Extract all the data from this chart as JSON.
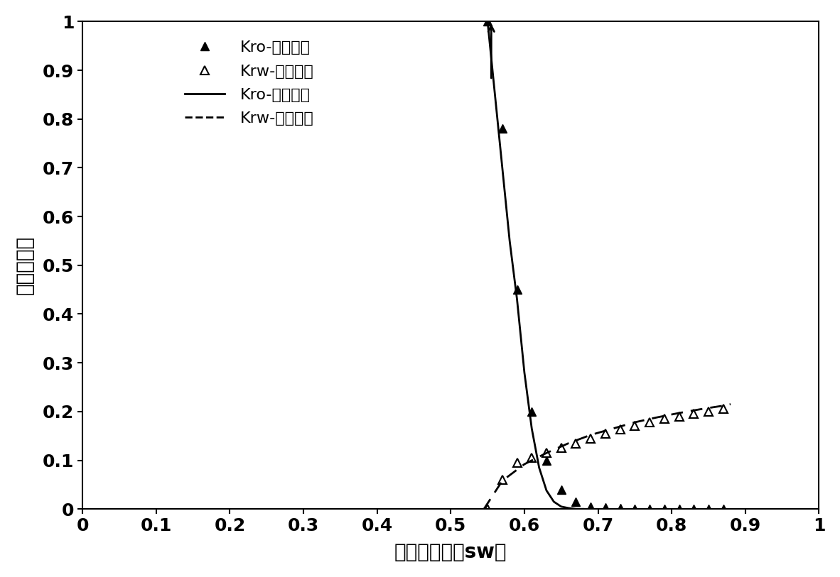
{
  "xlabel_main": "含水饱和度（s",
  "xlabel_sub": "w",
  "xlabel_end": "）",
  "ylabel": "相对渗透率",
  "xlim": [
    0,
    1
  ],
  "ylim": [
    0,
    1
  ],
  "xticks": [
    0,
    0.1,
    0.2,
    0.3,
    0.4,
    0.5,
    0.6,
    0.7,
    0.8,
    0.9,
    1.0
  ],
  "yticks": [
    0,
    0.1,
    0.2,
    0.3,
    0.4,
    0.5,
    0.6,
    0.7,
    0.8,
    0.9,
    1.0
  ],
  "kro_exp_x": [
    0.55,
    0.57,
    0.59,
    0.61,
    0.63,
    0.65,
    0.67,
    0.69,
    0.71,
    0.73,
    0.75,
    0.77,
    0.79,
    0.81,
    0.83,
    0.85,
    0.87
  ],
  "kro_exp_y": [
    1.0,
    0.78,
    0.45,
    0.2,
    0.1,
    0.04,
    0.015,
    0.005,
    0.003,
    0.002,
    0.001,
    0.001,
    0.0,
    0.0,
    0.0,
    0.0,
    0.0
  ],
  "krw_exp_x": [
    0.55,
    0.57,
    0.59,
    0.61,
    0.63,
    0.65,
    0.67,
    0.69,
    0.71,
    0.73,
    0.75,
    0.77,
    0.79,
    0.81,
    0.83,
    0.85,
    0.87
  ],
  "krw_exp_y": [
    0.0,
    0.06,
    0.095,
    0.105,
    0.115,
    0.125,
    0.135,
    0.145,
    0.155,
    0.163,
    0.17,
    0.178,
    0.185,
    0.19,
    0.195,
    0.2,
    0.205
  ],
  "kro_calc_x": [
    0.545,
    0.55,
    0.56,
    0.57,
    0.58,
    0.59,
    0.6,
    0.61,
    0.62,
    0.63,
    0.64,
    0.65,
    0.66,
    0.67,
    0.68
  ],
  "kro_calc_y": [
    1.05,
    1.0,
    0.85,
    0.7,
    0.55,
    0.43,
    0.28,
    0.165,
    0.085,
    0.038,
    0.015,
    0.005,
    0.002,
    0.0,
    0.0
  ],
  "krw_calc_x": [
    0.545,
    0.57,
    0.6,
    0.63,
    0.66,
    0.69,
    0.72,
    0.75,
    0.78,
    0.81,
    0.84,
    0.87,
    0.88
  ],
  "krw_calc_y": [
    0.0,
    0.058,
    0.092,
    0.115,
    0.135,
    0.152,
    0.165,
    0.178,
    0.188,
    0.197,
    0.205,
    0.212,
    0.215
  ],
  "legend_kro_exp": "Kro-实验数据",
  "legend_krw_exp": "Krw-实验数据",
  "legend_kro_calc": "Kro-计算数据",
  "legend_krw_calc": "Krw-计算数据",
  "line_color": "#000000",
  "marker_size": 9,
  "line_width": 2.0,
  "font_size": 20,
  "tick_font_size": 18,
  "legend_font_size": 16
}
